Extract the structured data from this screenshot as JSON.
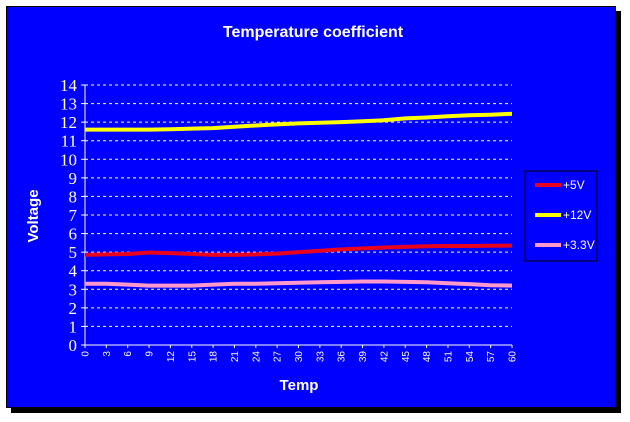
{
  "chart_data": {
    "type": "line",
    "title": "Temperature coefficient",
    "xlabel": "Temp",
    "ylabel": "Voltage",
    "x": [
      0,
      3,
      6,
      9,
      12,
      15,
      18,
      21,
      24,
      27,
      30,
      33,
      36,
      39,
      42,
      45,
      48,
      51,
      54,
      57,
      60
    ],
    "ylim": [
      0,
      14
    ],
    "yticks": [
      0,
      1,
      2,
      3,
      4,
      5,
      6,
      7,
      8,
      9,
      10,
      11,
      12,
      13,
      14
    ],
    "grid": true,
    "legend_position": "right",
    "background_color": "#0000ff",
    "series": [
      {
        "name": "+5V",
        "color": "#e8001c",
        "values": [
          4.85,
          4.88,
          4.9,
          4.98,
          4.95,
          4.9,
          4.85,
          4.85,
          4.88,
          4.92,
          5.0,
          5.08,
          5.15,
          5.2,
          5.25,
          5.28,
          5.32,
          5.33,
          5.33,
          5.34,
          5.35
        ]
      },
      {
        "name": "+12V",
        "color": "#ffff00",
        "values": [
          11.6,
          11.6,
          11.6,
          11.6,
          11.62,
          11.65,
          11.68,
          11.75,
          11.82,
          11.88,
          11.93,
          11.97,
          12.0,
          12.05,
          12.1,
          12.2,
          12.25,
          12.32,
          12.37,
          12.4,
          12.45
        ]
      },
      {
        "name": "+3.3V",
        "color": "#ff99cc",
        "values": [
          3.3,
          3.3,
          3.25,
          3.2,
          3.2,
          3.2,
          3.25,
          3.3,
          3.3,
          3.32,
          3.35,
          3.38,
          3.4,
          3.42,
          3.42,
          3.4,
          3.38,
          3.32,
          3.28,
          3.22,
          3.2
        ]
      }
    ]
  }
}
